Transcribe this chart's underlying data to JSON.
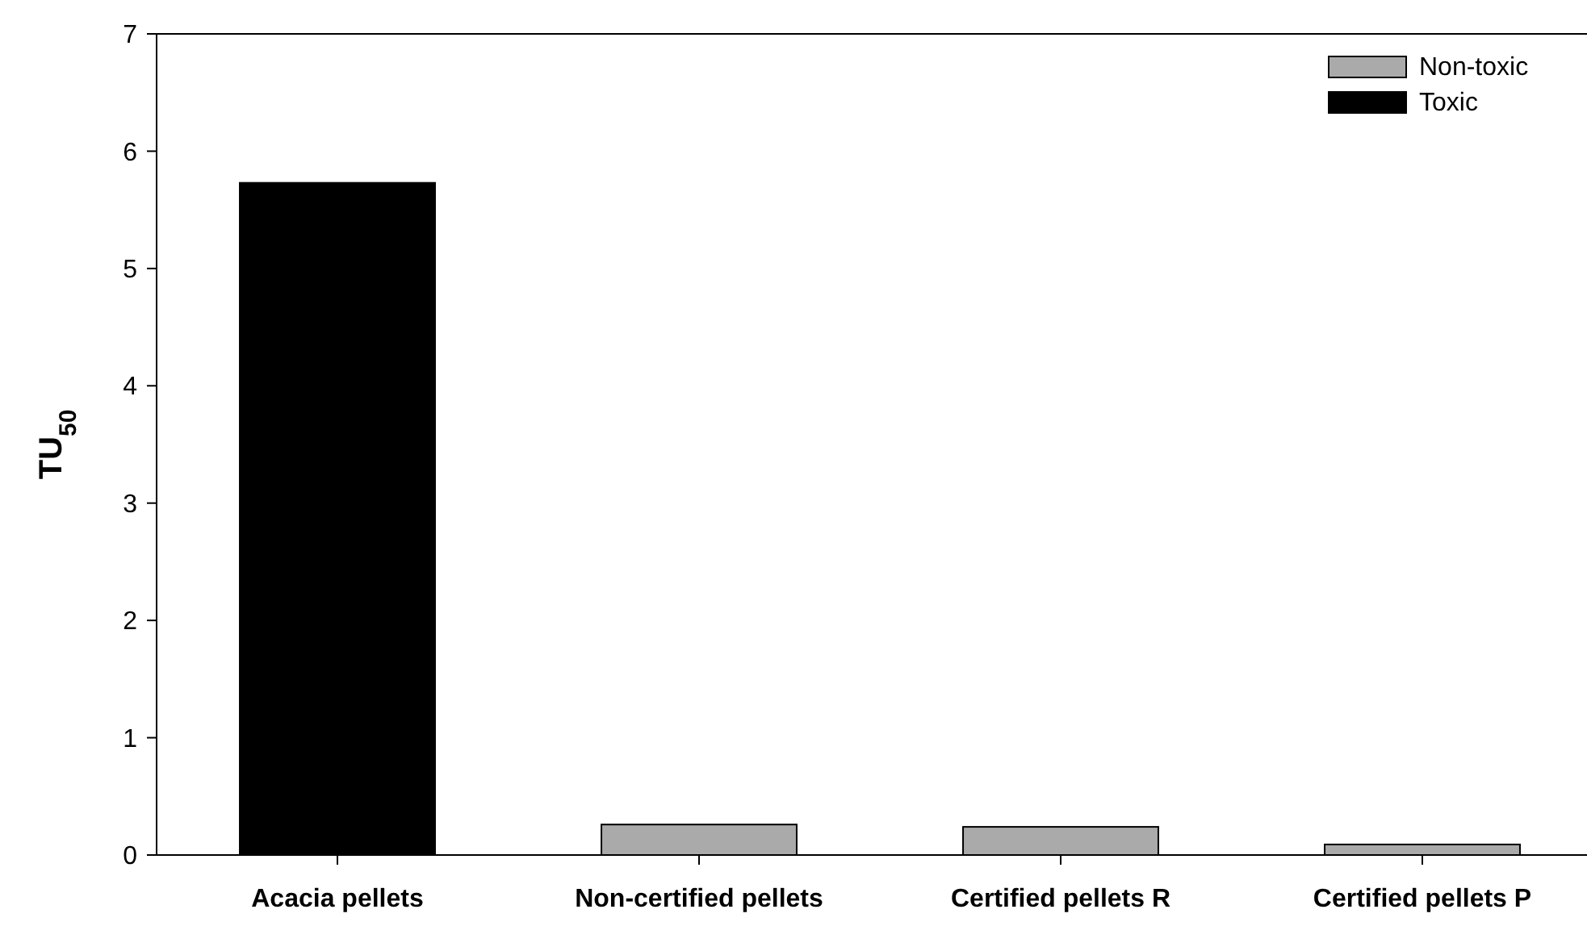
{
  "chart_data": {
    "type": "bar",
    "ylabel": "TU$_{50}$",
    "categories": [
      "Acacia pellets",
      "Non-certified pellets",
      "Certified pellets R",
      "Certified pellets P"
    ],
    "stacked": true,
    "series": [
      {
        "name": "Non-toxic",
        "color": "#aaaaaa",
        "values": [
          null,
          0.26,
          0.24,
          0.09
        ]
      },
      {
        "name": "Toxic",
        "color": "#000000",
        "values": [
          5.73,
          null,
          null,
          null
        ]
      }
    ],
    "ylim": [
      0,
      7
    ],
    "yticks": [
      0,
      1,
      2,
      3,
      4,
      5,
      6,
      7
    ],
    "grid": false,
    "legend": "top right"
  }
}
